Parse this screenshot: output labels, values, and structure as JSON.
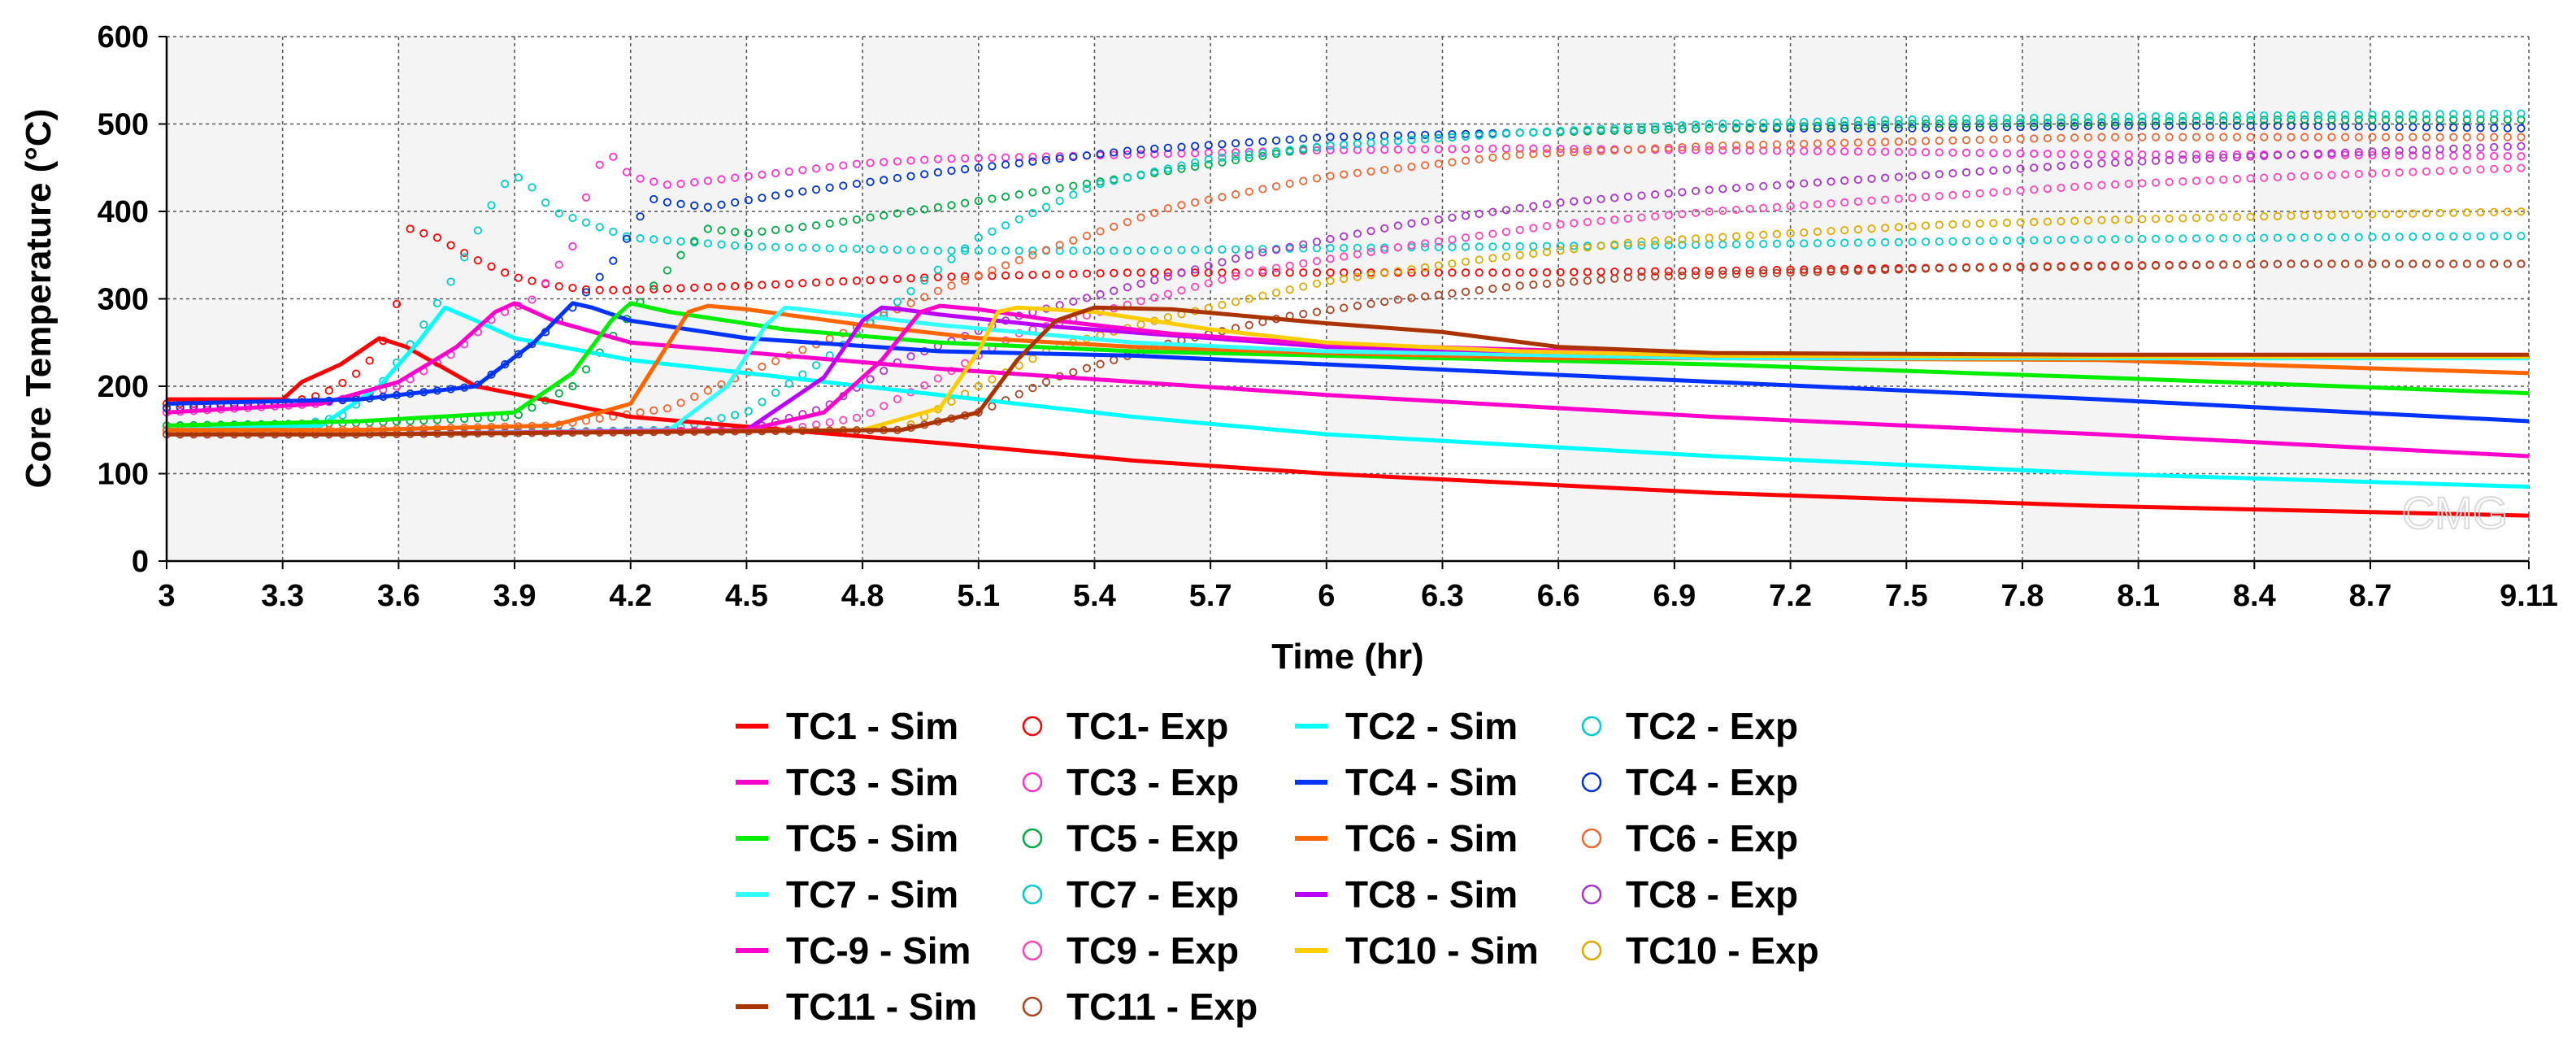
{
  "chart_data": {
    "type": "line",
    "title": "",
    "xlabel": "Time (hr)",
    "ylabel": "Core Temperature (°C)",
    "xlim": [
      3,
      9.11
    ],
    "ylim": [
      0,
      600
    ],
    "x_ticks": [
      "3",
      "3.3",
      "3.6",
      "3.9",
      "4.2",
      "4.5",
      "4.8",
      "5.1",
      "5.4",
      "5.7",
      "6",
      "6.3",
      "6.6",
      "6.9",
      "7.2",
      "7.5",
      "7.8",
      "8.1",
      "8.4",
      "8.7",
      "9.11"
    ],
    "y_ticks": [
      "0",
      "100",
      "200",
      "300",
      "400",
      "500",
      "600"
    ],
    "grid": true,
    "legend_position": "bottom",
    "watermark": "CMG",
    "series": [
      {
        "name": "TC1 - Sim",
        "style": "line",
        "color": "#ff0000",
        "x": [
          3,
          3.3,
          3.35,
          3.45,
          3.55,
          3.62,
          3.8,
          4.2,
          4.6,
          5.0,
          5.5,
          6.0,
          7.0,
          8.0,
          9.11
        ],
        "y": [
          185,
          185,
          205,
          225,
          255,
          245,
          200,
          165,
          150,
          135,
          115,
          100,
          78,
          63,
          52
        ]
      },
      {
        "name": "TC1- Exp",
        "style": "marker",
        "color": "#ff0000",
        "x": [
          3,
          3.3,
          3.4,
          3.48,
          3.55,
          3.6,
          3.63,
          3.7,
          3.8,
          3.9,
          4.0,
          4.1,
          4.2,
          4.5,
          5.0,
          5.5,
          6.0,
          6.5,
          7.0,
          7.5,
          8.0,
          8.5,
          9.11
        ],
        "y": [
          180,
          180,
          190,
          210,
          240,
          300,
          380,
          370,
          345,
          325,
          315,
          310,
          310,
          315,
          325,
          330,
          330,
          330,
          332,
          335,
          338,
          340,
          340
        ]
      },
      {
        "name": "TC2 - Sim",
        "style": "line",
        "color": "#00ffff",
        "x": [
          3,
          3.4,
          3.55,
          3.65,
          3.72,
          3.8,
          3.9,
          4.2,
          4.5,
          5.0,
          5.5,
          6.0,
          7.0,
          8.0,
          9.11
        ],
        "y": [
          150,
          155,
          200,
          250,
          290,
          275,
          255,
          230,
          215,
          190,
          165,
          145,
          120,
          100,
          85
        ]
      },
      {
        "name": "TC2 - Exp",
        "style": "marker",
        "color": "#00cccc",
        "x": [
          3,
          3.3,
          3.45,
          3.55,
          3.65,
          3.75,
          3.83,
          3.88,
          3.92,
          4.0,
          4.2,
          4.5,
          5.0,
          5.5,
          6.0,
          6.5,
          7.0,
          7.5,
          8.0,
          8.5,
          9.11
        ],
        "y": [
          150,
          152,
          165,
          200,
          260,
          330,
          400,
          435,
          440,
          400,
          370,
          360,
          355,
          355,
          358,
          360,
          362,
          365,
          368,
          370,
          372
        ]
      },
      {
        "name": "TC3 - Sim",
        "style": "line",
        "color": "#ff00cc",
        "x": [
          3,
          3.4,
          3.6,
          3.75,
          3.85,
          3.9,
          4.0,
          4.2,
          4.6,
          5.0,
          5.5,
          6.0,
          7.0,
          8.0,
          9.11
        ],
        "y": [
          170,
          180,
          205,
          245,
          285,
          295,
          275,
          250,
          235,
          220,
          205,
          190,
          165,
          145,
          120
        ]
      },
      {
        "name": "TC3 - Exp",
        "style": "marker",
        "color": "#ff33cc",
        "x": [
          3,
          3.4,
          3.6,
          3.75,
          3.85,
          3.95,
          4.05,
          4.1,
          4.13,
          4.15,
          4.2,
          4.3,
          4.5,
          4.8,
          5.0,
          5.5,
          6.0,
          6.5,
          7.0,
          7.5,
          8.0,
          8.5,
          9.11
        ],
        "y": [
          170,
          180,
          200,
          240,
          280,
          300,
          360,
          440,
          460,
          465,
          440,
          430,
          440,
          455,
          460,
          465,
          470,
          472,
          470,
          468,
          465,
          465,
          463
        ]
      },
      {
        "name": "TC4 - Sim",
        "style": "line",
        "color": "#0033ff",
        "x": [
          3,
          3.5,
          3.8,
          3.95,
          4.05,
          4.1,
          4.2,
          4.5,
          5.0,
          5.5,
          6.0,
          6.5,
          7.0,
          8.0,
          9.11
        ],
        "y": [
          180,
          185,
          200,
          250,
          295,
          290,
          275,
          255,
          240,
          235,
          225,
          215,
          205,
          185,
          160
        ]
      },
      {
        "name": "TC4 - Exp",
        "style": "marker",
        "color": "#0033cc",
        "x": [
          3,
          3.5,
          3.8,
          3.95,
          4.05,
          4.15,
          4.22,
          4.25,
          4.3,
          4.4,
          4.6,
          5.0,
          5.5,
          6.0,
          6.5,
          7.0,
          7.5,
          8.0,
          8.5,
          9.11
        ],
        "y": [
          175,
          185,
          200,
          250,
          290,
          340,
          390,
          415,
          410,
          405,
          420,
          445,
          470,
          485,
          490,
          495,
          495,
          498,
          498,
          495
        ]
      },
      {
        "name": "TC5 - Sim",
        "style": "line",
        "color": "#00ee00",
        "x": [
          3,
          3.5,
          3.9,
          4.05,
          4.15,
          4.2,
          4.3,
          4.6,
          5.0,
          5.5,
          6.0,
          7.0,
          8.0,
          9.11
        ],
        "y": [
          155,
          160,
          170,
          215,
          275,
          295,
          285,
          265,
          250,
          240,
          235,
          225,
          210,
          192
        ]
      },
      {
        "name": "TC5 - Exp",
        "style": "marker",
        "color": "#00aa44",
        "x": [
          3,
          3.5,
          3.9,
          4.05,
          4.15,
          4.25,
          4.35,
          4.4,
          4.5,
          4.7,
          5.0,
          5.5,
          6.0,
          6.5,
          7.0,
          7.5,
          8.0,
          8.5,
          9.11
        ],
        "y": [
          155,
          158,
          165,
          200,
          255,
          310,
          360,
          380,
          375,
          385,
          405,
          440,
          475,
          490,
          495,
          500,
          502,
          505,
          505
        ]
      },
      {
        "name": "TC6 - Sim",
        "style": "line",
        "color": "#ff6600",
        "x": [
          3,
          3.5,
          4.0,
          4.2,
          4.3,
          4.35,
          4.4,
          4.5,
          4.8,
          5.1,
          5.5,
          6.0,
          6.6,
          7.0,
          8.0,
          9.11
        ],
        "y": [
          150,
          150,
          155,
          180,
          250,
          285,
          292,
          288,
          270,
          255,
          245,
          238,
          232,
          232,
          230,
          215
        ]
      },
      {
        "name": "TC6 - Exp",
        "style": "marker",
        "color": "#ee6633",
        "x": [
          3,
          3.5,
          4.0,
          4.3,
          4.5,
          4.8,
          5.0,
          5.3,
          5.6,
          6.0,
          6.5,
          7.0,
          7.5,
          8.0,
          8.5,
          9.11
        ],
        "y": [
          150,
          150,
          155,
          175,
          215,
          270,
          310,
          360,
          405,
          440,
          465,
          475,
          480,
          485,
          485,
          485
        ]
      },
      {
        "name": "TC7 - Sim",
        "style": "line",
        "color": "#33ffff",
        "x": [
          3,
          3.5,
          4.3,
          4.45,
          4.55,
          4.6,
          4.7,
          5.0,
          5.5,
          6.0,
          7.0,
          8.0,
          9.11
        ],
        "y": [
          145,
          145,
          150,
          200,
          270,
          290,
          285,
          270,
          250,
          240,
          232,
          232,
          232
        ]
      },
      {
        "name": "TC7 - Exp",
        "style": "marker",
        "color": "#00cccc",
        "x": [
          3,
          3.5,
          4.3,
          4.5,
          4.7,
          4.9,
          5.1,
          5.4,
          5.7,
          6.0,
          6.5,
          7.0,
          7.5,
          8.0,
          8.5,
          9.11
        ],
        "y": [
          145,
          145,
          150,
          170,
          230,
          300,
          370,
          430,
          460,
          475,
          490,
          500,
          505,
          508,
          510,
          512
        ]
      },
      {
        "name": "TC8 - Sim",
        "style": "line",
        "color": "#bb00ff",
        "x": [
          3,
          3.5,
          4.5,
          4.7,
          4.8,
          4.85,
          4.9,
          5.0,
          5.3,
          5.7,
          6.0,
          7.0,
          8.0,
          9.11
        ],
        "y": [
          145,
          145,
          150,
          210,
          275,
          290,
          288,
          282,
          268,
          255,
          245,
          235,
          234,
          234
        ]
      },
      {
        "name": "TC8 - Exp",
        "style": "marker",
        "color": "#aa33cc",
        "x": [
          3,
          3.5,
          4.5,
          4.7,
          4.9,
          5.2,
          5.5,
          5.8,
          6.2,
          6.6,
          7.0,
          7.5,
          8.0,
          8.5,
          9.11
        ],
        "y": [
          145,
          145,
          150,
          175,
          230,
          280,
          315,
          350,
          385,
          410,
          425,
          440,
          455,
          465,
          475
        ]
      },
      {
        "name": "TC-9 - Sim",
        "style": "line",
        "color": "#ff00cc",
        "x": [
          3,
          3.5,
          4.5,
          4.7,
          4.85,
          4.95,
          5.0,
          5.1,
          5.3,
          5.6,
          6.0,
          7.0,
          8.0,
          9.11
        ],
        "y": [
          145,
          145,
          150,
          170,
          230,
          285,
          292,
          288,
          275,
          260,
          248,
          236,
          234,
          234
        ]
      },
      {
        "name": "TC9 - Exp",
        "style": "marker",
        "color": "#ff44bb",
        "x": [
          3,
          3.5,
          4.6,
          4.8,
          5.0,
          5.2,
          5.5,
          5.8,
          6.2,
          6.6,
          7.0,
          7.5,
          8.0,
          8.5,
          9.11
        ],
        "y": [
          145,
          145,
          150,
          165,
          210,
          260,
          295,
          330,
          360,
          385,
          400,
          415,
          430,
          440,
          450
        ]
      },
      {
        "name": "TC10 - Sim",
        "style": "line",
        "color": "#ffcc00",
        "x": [
          3,
          3.5,
          4.8,
          5.0,
          5.1,
          5.15,
          5.2,
          5.4,
          5.7,
          6.0,
          6.5,
          7.0,
          8.0,
          9.11
        ],
        "y": [
          145,
          145,
          150,
          175,
          240,
          285,
          290,
          285,
          265,
          250,
          240,
          235,
          234,
          234
        ]
      },
      {
        "name": "TC10 - Exp",
        "style": "marker",
        "color": "#ddaa00",
        "x": [
          3,
          3.5,
          4.9,
          5.1,
          5.3,
          5.6,
          6.0,
          6.4,
          6.8,
          7.2,
          7.6,
          8.0,
          8.5,
          9.11
        ],
        "y": [
          145,
          145,
          150,
          200,
          245,
          280,
          320,
          345,
          365,
          375,
          385,
          390,
          395,
          400
        ]
      },
      {
        "name": "TC11 - Sim",
        "style": "line",
        "color": "#aa3300",
        "x": [
          3,
          3.5,
          4.9,
          5.1,
          5.2,
          5.3,
          5.4,
          5.6,
          5.8,
          6.0,
          6.3,
          6.6,
          7.0,
          8.0,
          9.11
        ],
        "y": [
          145,
          145,
          150,
          170,
          230,
          275,
          290,
          288,
          280,
          272,
          262,
          245,
          238,
          236,
          236
        ]
      },
      {
        "name": "TC11 - Exp",
        "style": "marker",
        "color": "#aa4422",
        "x": [
          3,
          3.5,
          4.9,
          5.1,
          5.3,
          5.6,
          5.9,
          6.2,
          6.5,
          6.8,
          7.2,
          7.6,
          8.0,
          8.5,
          9.11
        ],
        "y": [
          145,
          145,
          150,
          170,
          210,
          250,
          280,
          300,
          315,
          325,
          330,
          335,
          337,
          340,
          340
        ]
      }
    ]
  }
}
